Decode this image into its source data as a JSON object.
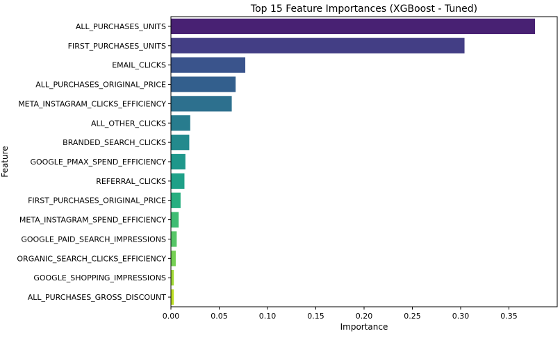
{
  "chart_data": {
    "type": "bar",
    "orientation": "horizontal",
    "title": "Top 15 Feature Importances (XGBoost - Tuned)",
    "xlabel": "Importance",
    "ylabel": "Feature",
    "xlim": [
      0,
      0.4
    ],
    "xticks": [
      0.0,
      0.05,
      0.1,
      0.15,
      0.2,
      0.25,
      0.3,
      0.35
    ],
    "xtick_labels": [
      "0.00",
      "0.05",
      "0.10",
      "0.15",
      "0.20",
      "0.25",
      "0.30",
      "0.35"
    ],
    "grid": false,
    "legend": "none",
    "colormap": "viridis",
    "categories": [
      "ALL_PURCHASES_UNITS",
      "FIRST_PURCHASES_UNITS",
      "EMAIL_CLICKS",
      "ALL_PURCHASES_ORIGINAL_PRICE",
      "META_INSTAGRAM_CLICKS_EFFICIENCY",
      "ALL_OTHER_CLICKS",
      "BRANDED_SEARCH_CLICKS",
      "GOOGLE_PMAX_SPEND_EFFICIENCY",
      "REFERRAL_CLICKS",
      "FIRST_PURCHASES_ORIGINAL_PRICE",
      "META_INSTAGRAM_SPEND_EFFICIENCY",
      "GOOGLE_PAID_SEARCH_IMPRESSIONS",
      "ORGANIC_SEARCH_CLICKS_EFFICIENCY",
      "GOOGLE_SHOPPING_IMPRESSIONS",
      "ALL_PURCHASES_GROSS_DISCOUNT"
    ],
    "values": [
      0.377,
      0.304,
      0.077,
      0.067,
      0.063,
      0.02,
      0.019,
      0.015,
      0.014,
      0.01,
      0.008,
      0.006,
      0.005,
      0.003,
      0.003
    ],
    "colors": [
      "#482173",
      "#433e85",
      "#3a548c",
      "#335f8d",
      "#2d708e",
      "#287c8e",
      "#238a8d",
      "#1f978b",
      "#1fa088",
      "#28ae80",
      "#3fbc73",
      "#56c667",
      "#75d054",
      "#a2da37",
      "#bddf26"
    ]
  }
}
